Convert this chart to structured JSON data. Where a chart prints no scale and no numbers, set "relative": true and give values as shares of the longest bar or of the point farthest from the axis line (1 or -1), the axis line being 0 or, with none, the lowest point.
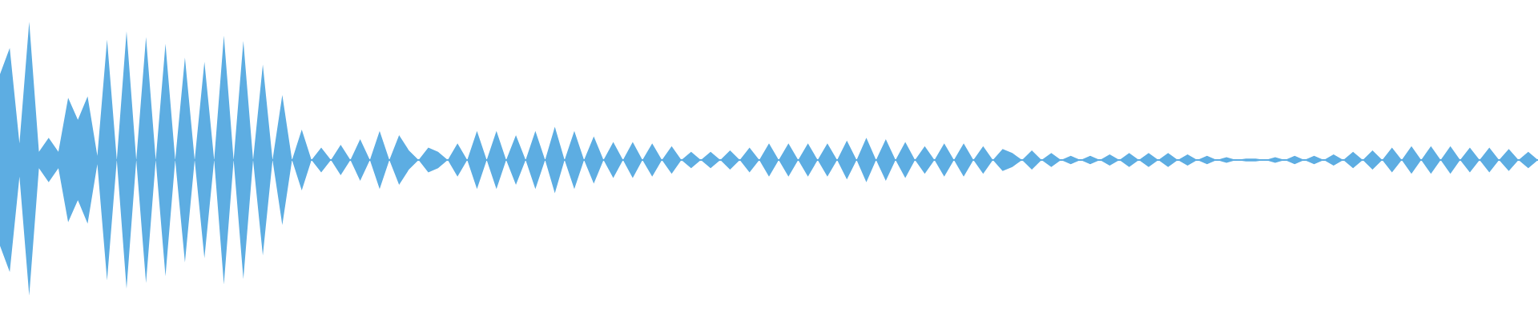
{
  "chart_data": {
    "type": "area",
    "relative": true,
    "ref_lines": [
      {
        "axis": "y",
        "value": 0,
        "color": "#5dade2"
      }
    ],
    "categories": [
      null,
      null,
      null,
      null,
      null,
      null,
      null,
      null,
      null,
      null,
      null,
      null,
      null,
      null,
      null,
      null,
      null,
      null,
      null,
      null,
      null,
      null,
      null,
      null,
      null,
      null,
      null,
      null,
      null,
      null,
      null,
      null,
      null,
      null,
      null,
      null,
      null,
      null,
      null,
      null,
      null,
      null,
      null,
      null,
      null,
      null,
      null,
      null,
      null,
      null,
      null,
      null,
      null,
      null,
      null,
      null,
      null,
      null,
      null,
      null,
      null,
      null,
      null,
      null,
      null,
      null,
      null,
      null,
      null,
      null,
      null,
      null,
      null,
      null,
      null,
      null,
      null,
      null,
      null,
      null,
      null,
      null,
      null,
      null,
      null,
      null,
      null,
      null,
      null,
      null,
      null,
      null,
      null,
      null,
      null,
      null,
      null,
      null,
      null,
      null,
      null,
      null,
      null,
      null,
      null,
      null,
      null,
      null,
      null,
      null,
      null,
      null,
      null,
      null,
      null,
      null,
      null,
      null,
      null,
      null,
      null,
      null,
      null,
      null,
      null,
      null,
      null,
      null,
      null,
      null,
      null,
      null,
      null,
      null,
      null,
      null,
      null,
      null,
      null,
      null,
      null,
      null,
      null,
      null,
      null,
      null,
      null,
      null,
      null,
      null,
      null,
      null,
      null,
      null,
      null,
      null,
      null,
      null,
      null
    ],
    "series": [
      {
        "color": "#5dade2",
        "values": [
          0.62,
          0.81,
          0.12,
          1.0,
          0.06,
          0.16,
          0.06,
          0.45,
          0.29,
          0.46,
          0.03,
          0.87,
          0,
          0.93,
          0,
          0.89,
          0,
          0.84,
          0,
          0.74,
          0,
          0.71,
          0,
          0.9,
          0,
          0.86,
          0,
          0.69,
          0,
          0.47,
          0,
          0.22,
          0,
          0.09,
          0,
          0.11,
          0,
          0.15,
          0,
          0.21,
          0,
          0.18,
          0.07,
          0,
          0.09,
          0.06,
          0,
          0.12,
          0,
          0.21,
          0,
          0.21,
          0,
          0.18,
          0,
          0.21,
          0,
          0.24,
          0,
          0.21,
          0,
          0.17,
          0,
          0.13,
          0,
          0.13,
          0,
          0.12,
          0,
          0.1,
          0,
          0.06,
          0,
          0.06,
          0,
          0.07,
          0,
          0.09,
          0,
          0.12,
          0,
          0.12,
          0,
          0.12,
          0,
          0.12,
          0,
          0.14,
          0,
          0.16,
          0,
          0.15,
          0,
          0.13,
          0,
          0.1,
          0,
          0.12,
          0,
          0.12,
          0,
          0.1,
          0,
          0.08,
          0.05,
          0,
          0.07,
          0,
          0.05,
          0,
          0.03,
          0,
          0.03,
          0,
          0.04,
          0,
          0.05,
          0,
          0.05,
          0,
          0.05,
          0,
          0.04,
          0,
          0.03,
          0,
          0.02,
          0,
          0.01,
          0.01,
          0,
          0.02,
          0,
          0.03,
          0,
          0.03,
          0,
          0.04,
          0,
          0.06,
          0,
          0.07,
          0,
          0.09,
          0,
          0.1,
          0,
          0.1,
          0,
          0.1,
          0,
          0.09,
          0,
          0.09,
          0,
          0.08,
          0,
          0.06,
          0
        ]
      },
      {
        "color": "#5dade2",
        "values": [
          -0.62,
          -0.81,
          -0.12,
          -0.98,
          -0.06,
          -0.16,
          -0.06,
          -0.45,
          -0.29,
          -0.46,
          -0.03,
          -0.87,
          0,
          -0.93,
          0,
          -0.89,
          0,
          -0.84,
          0,
          -0.74,
          0,
          -0.71,
          0,
          -0.9,
          0,
          -0.86,
          0,
          -0.69,
          0,
          -0.47,
          0,
          -0.22,
          0,
          -0.09,
          0,
          -0.11,
          0,
          -0.15,
          0,
          -0.21,
          0,
          -0.18,
          -0.07,
          0,
          -0.09,
          -0.06,
          0,
          -0.12,
          0,
          -0.21,
          0,
          -0.21,
          0,
          -0.18,
          0,
          -0.21,
          0,
          -0.24,
          0,
          -0.21,
          0,
          -0.17,
          0,
          -0.13,
          0,
          -0.13,
          0,
          -0.12,
          0,
          -0.1,
          0,
          -0.06,
          0,
          -0.06,
          0,
          -0.07,
          0,
          -0.09,
          0,
          -0.12,
          0,
          -0.12,
          0,
          -0.12,
          0,
          -0.12,
          0,
          -0.14,
          0,
          -0.16,
          0,
          -0.15,
          0,
          -0.13,
          0,
          -0.1,
          0,
          -0.12,
          0,
          -0.12,
          0,
          -0.1,
          0,
          -0.08,
          -0.05,
          0,
          -0.07,
          0,
          -0.05,
          0,
          -0.03,
          0,
          -0.03,
          0,
          -0.04,
          0,
          -0.05,
          0,
          -0.05,
          0,
          -0.05,
          0,
          -0.04,
          0,
          -0.03,
          0,
          -0.02,
          0,
          -0.01,
          -0.01,
          0,
          -0.02,
          0,
          -0.03,
          0,
          -0.03,
          0,
          -0.04,
          0,
          -0.06,
          0,
          -0.07,
          0,
          -0.09,
          0,
          -0.1,
          0,
          -0.1,
          0,
          -0.1,
          0,
          -0.09,
          0,
          -0.09,
          0,
          -0.08,
          0,
          -0.06,
          0
        ]
      }
    ]
  }
}
